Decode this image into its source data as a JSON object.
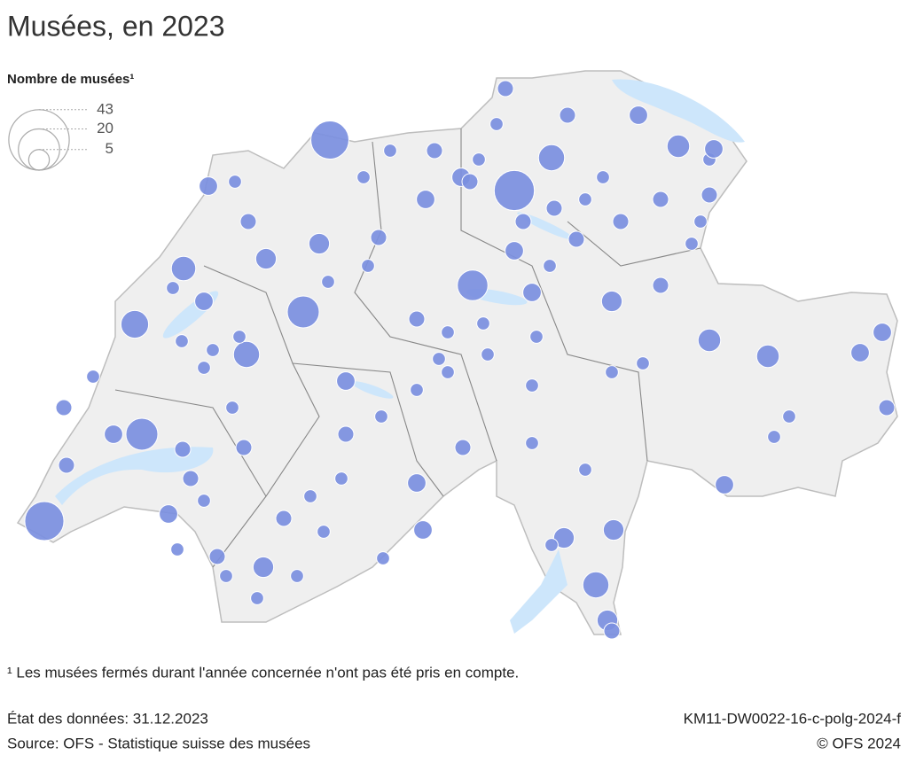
{
  "title": "Musées, en 2023",
  "legend": {
    "title": "Nombre de musées¹",
    "values": [
      43,
      20,
      5
    ]
  },
  "museums": {
    "color": "#7b8fe0",
    "values": [
      17,
      18,
      19,
      12,
      12,
      11,
      8,
      7,
      9,
      8,
      6,
      8,
      5,
      5,
      5,
      6,
      6,
      5,
      4,
      4,
      5,
      5,
      4,
      4,
      2,
      3,
      3,
      4,
      3,
      4,
      4,
      2,
      5,
      4,
      4,
      3,
      4,
      3,
      4,
      4,
      3,
      4,
      3,
      3,
      3,
      4,
      2,
      4,
      3,
      2,
      2,
      3,
      2,
      3,
      2,
      2,
      3,
      3,
      2,
      4,
      2,
      2,
      2,
      2,
      2,
      2,
      2,
      2,
      3,
      3,
      2,
      2,
      2,
      2,
      2,
      2,
      3,
      2,
      3,
      2,
      2,
      3,
      2,
      3,
      3,
      2,
      3,
      2,
      2,
      2,
      2,
      2,
      2,
      2,
      3,
      3,
      2,
      2,
      2,
      2,
      2,
      2,
      2,
      2,
      2,
      2,
      3
    ]
  },
  "footnote": "¹ Les musées fermés durant l'année concernée n'ont pas été pris en compte.",
  "footer": {
    "status": "État des données: 31.12.2023",
    "source": "Source: OFS - Statistique suisse des musées",
    "code": "KM11-DW0022-16-c-polg-2024-f",
    "copyright": "© OFS 2024"
  }
}
